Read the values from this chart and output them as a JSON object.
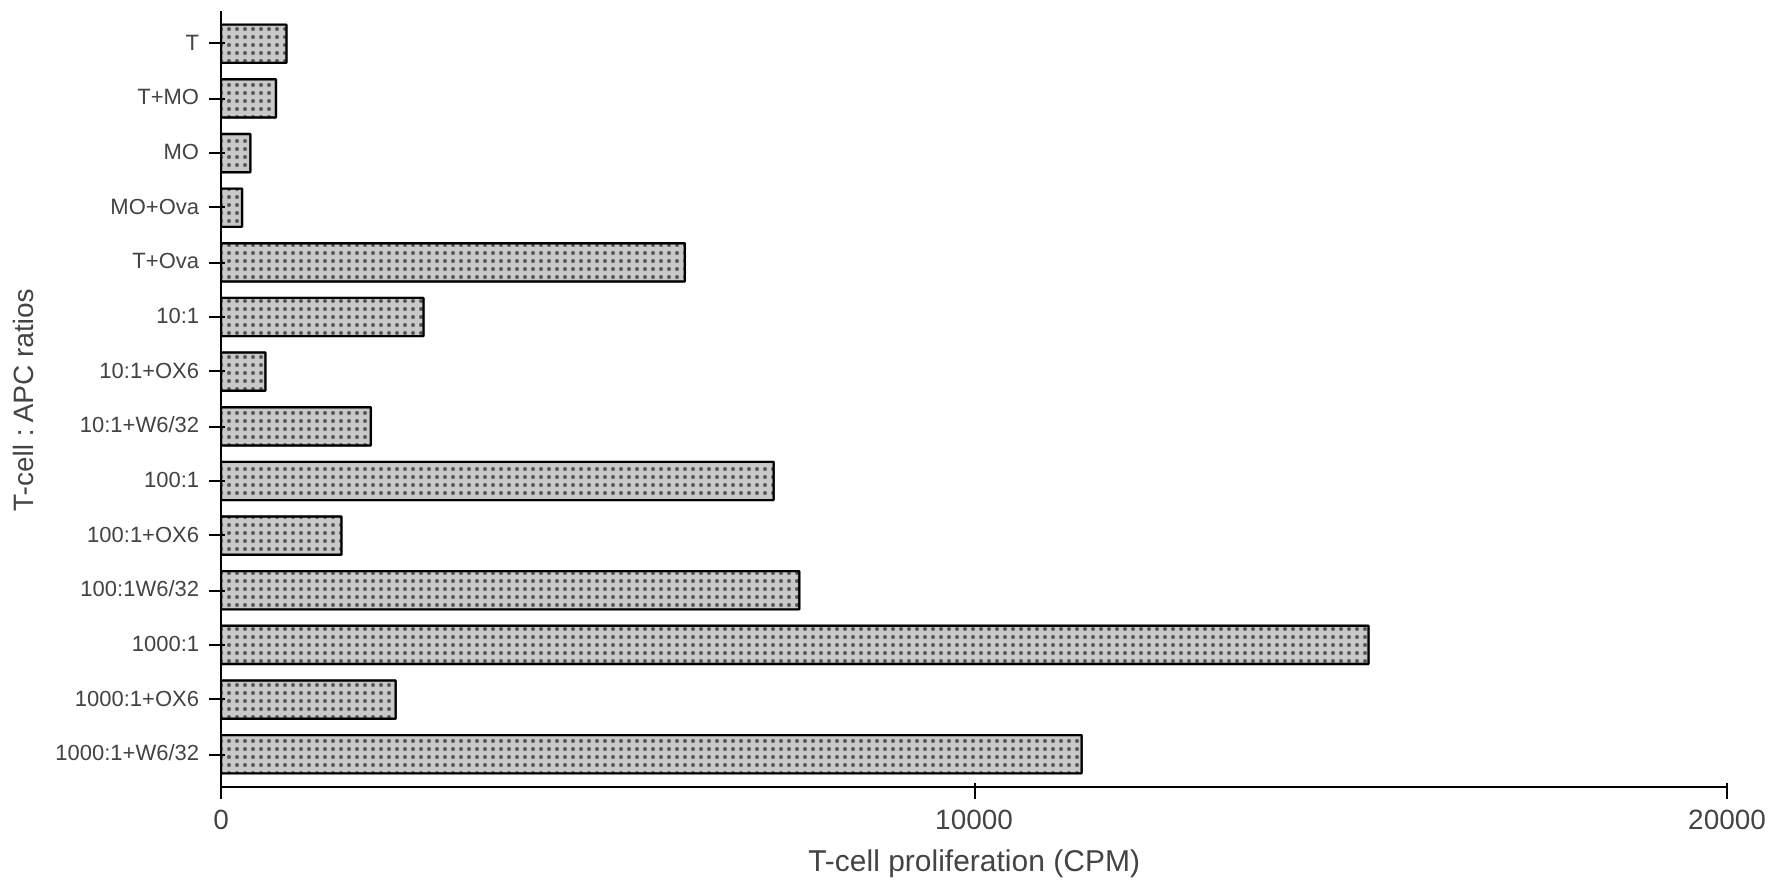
{
  "chart_data": {
    "type": "bar",
    "orientation": "horizontal",
    "xlabel": "T-cell proliferation (CPM)",
    "ylabel": "T-cell : APC ratios",
    "categories": [
      "T",
      "T+MO",
      "MO",
      "MO+Ova",
      "T+Ova",
      "10:1",
      "10:1+OX6",
      "10:1+W6/32",
      "100:1",
      "100:1+OX6",
      "100:1W6/32",
      "1000:1",
      "1000:1+OX6",
      "1000:1+W6/32"
    ],
    "values": [
      870,
      730,
      390,
      280,
      6160,
      2690,
      590,
      1990,
      7340,
      1600,
      7680,
      15240,
      2320,
      11430
    ],
    "color": "#c8c8c8",
    "xlim": [
      0,
      20000
    ],
    "xticks": [
      0,
      10000,
      20000
    ],
    "grid": false
  }
}
